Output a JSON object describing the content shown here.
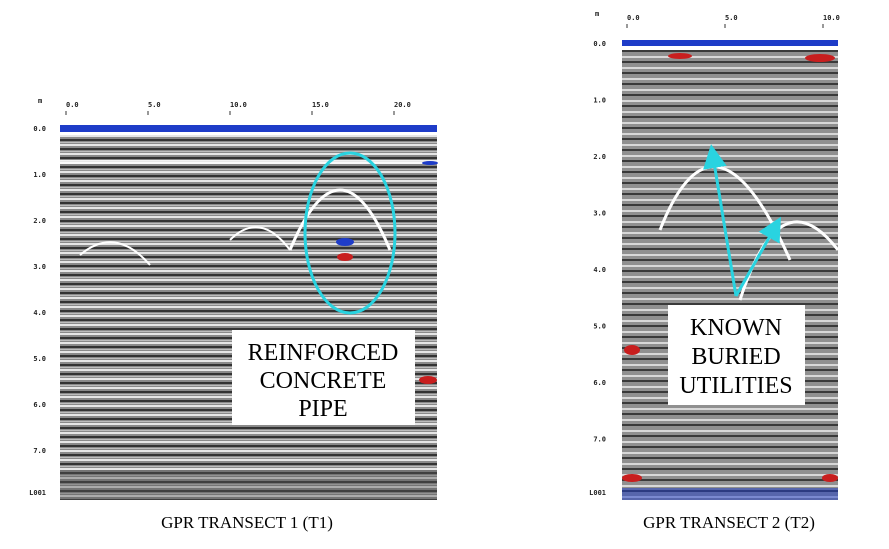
{
  "panels": [
    {
      "axis_unit": "m",
      "x_ticks": [
        "0.0",
        "5.0",
        "10.0",
        "15.0",
        "20.0"
      ],
      "y_ticks": [
        "0.0",
        "1.0",
        "2.0",
        "3.0",
        "4.0",
        "5.0",
        "6.0",
        "7.0"
      ],
      "file": "L001",
      "annotation": [
        "REINFORCED",
        "CONCRETE",
        "PIPE"
      ],
      "caption": "GPR TRANSECT 1 (T1)"
    },
    {
      "axis_unit": "m",
      "x_ticks": [
        "0.0",
        "5.0",
        "10.0"
      ],
      "y_ticks": [
        "0.0",
        "1.0",
        "2.0",
        "3.0",
        "4.0",
        "5.0",
        "6.0",
        "7.0"
      ],
      "file": "L001",
      "annotation": [
        "KNOWN",
        "BURIED",
        "UTILITIES"
      ],
      "caption": "GPR TRANSECT 2 (T2)"
    }
  ]
}
